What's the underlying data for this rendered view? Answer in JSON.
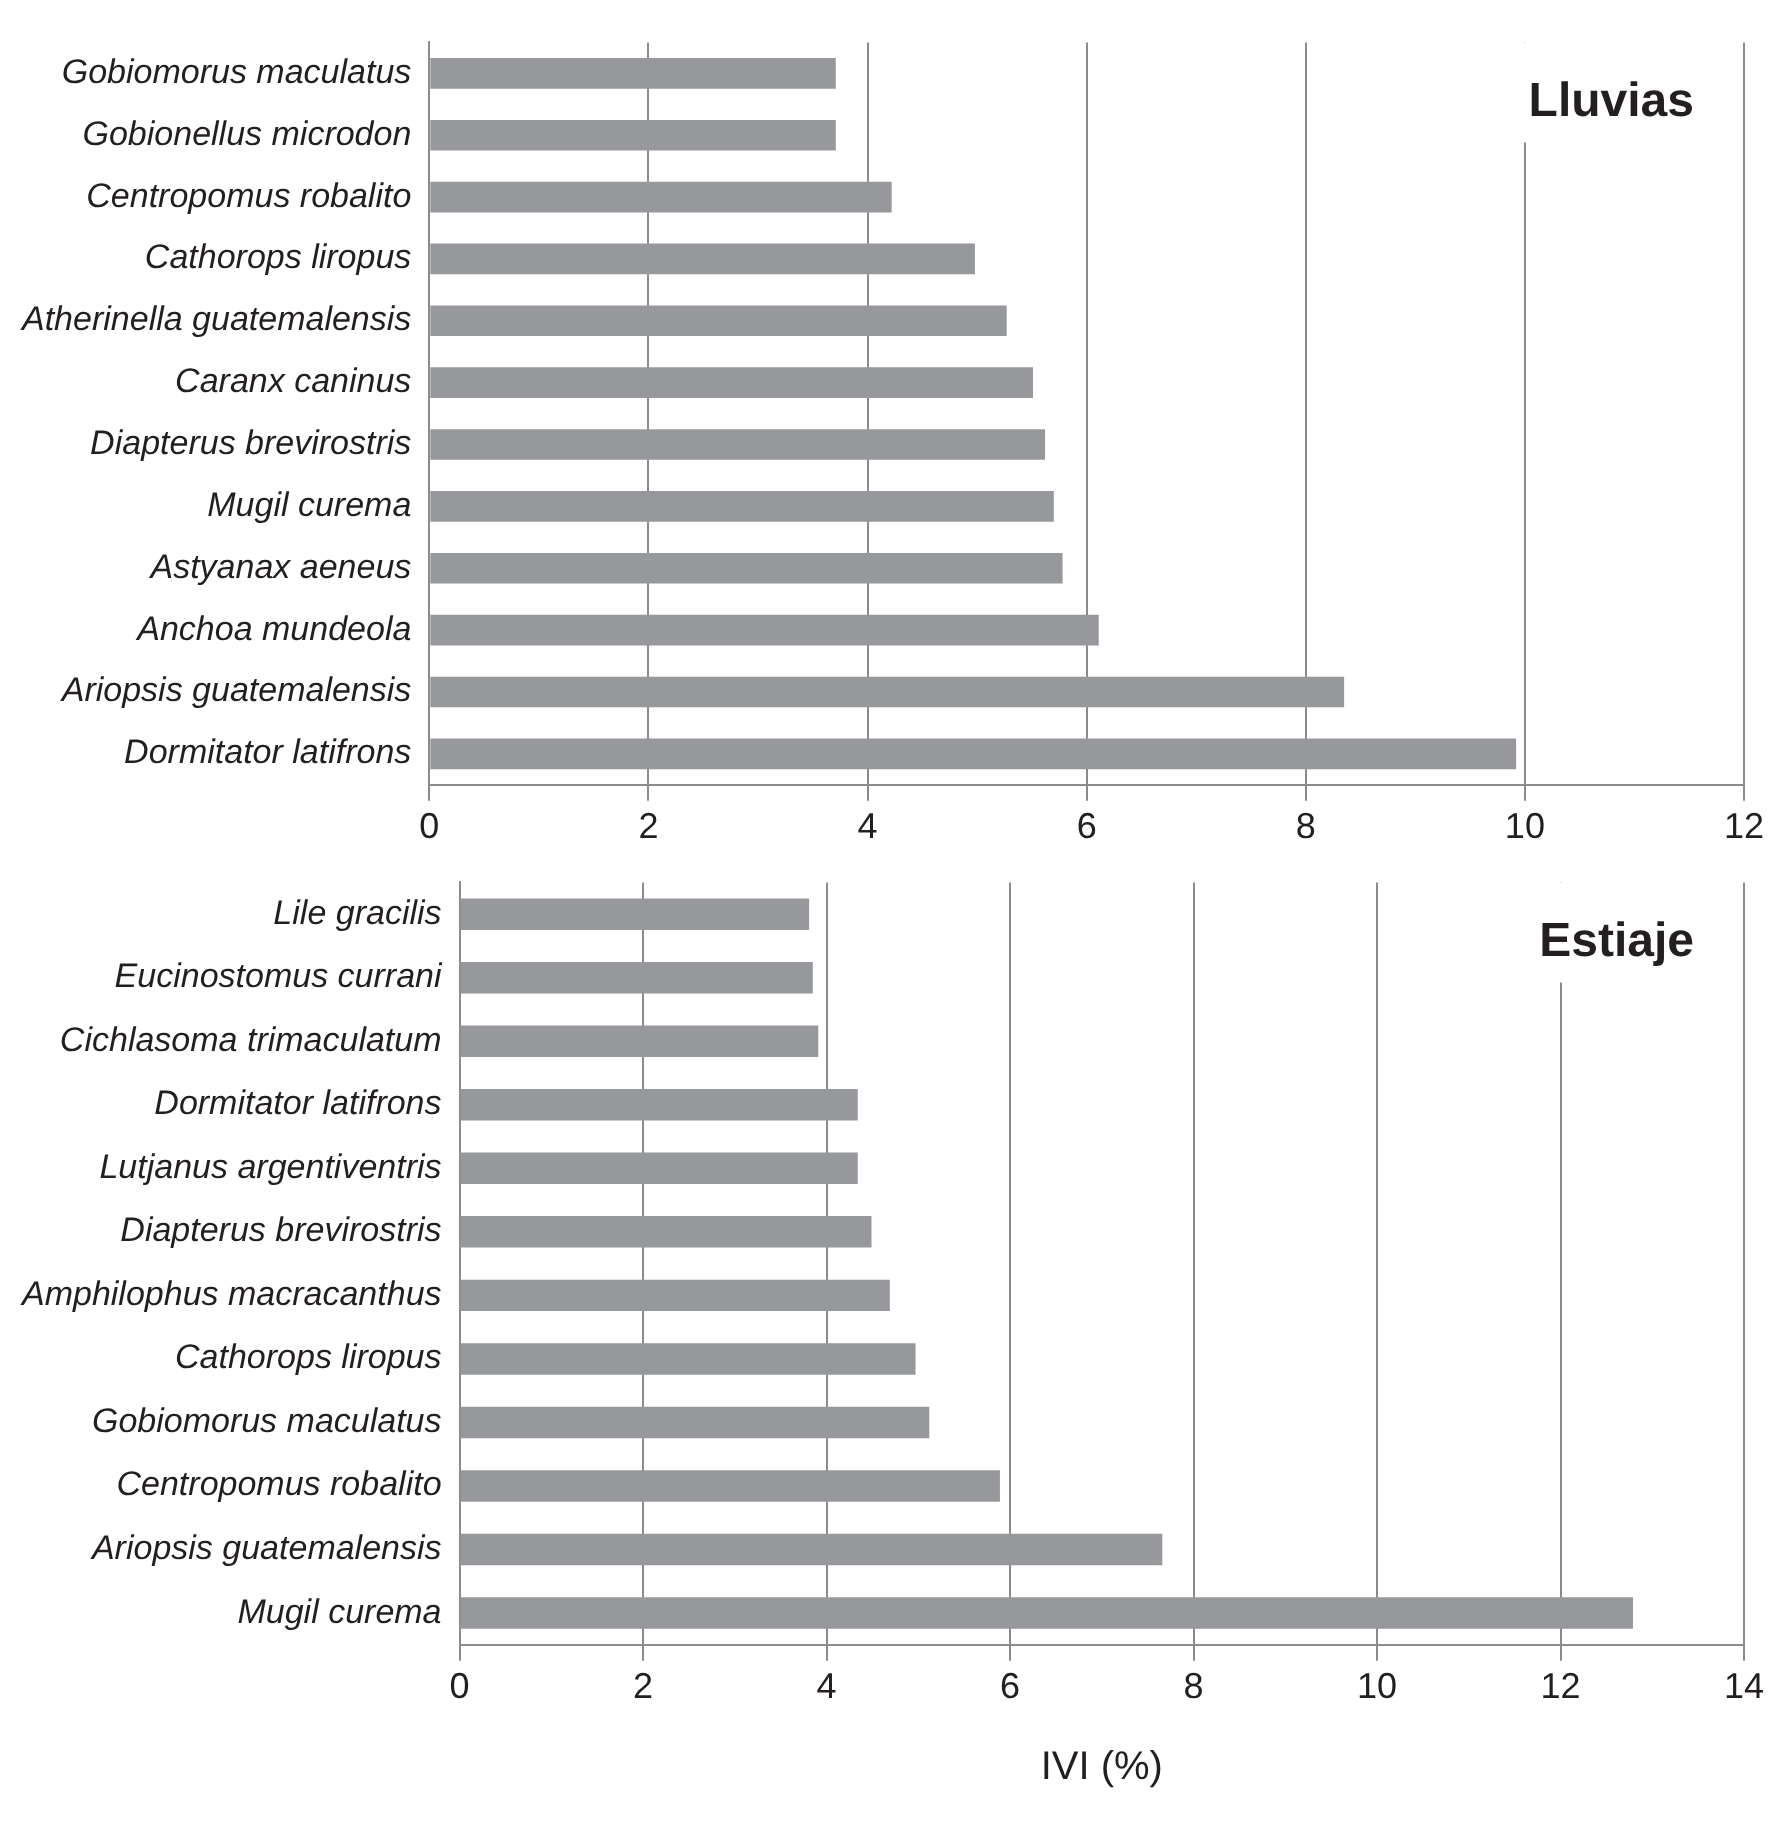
{
  "chart_data": [
    {
      "type": "bar",
      "orientation": "horizontal",
      "title": "Lluvias",
      "categories": [
        "Gobiomorus maculatus",
        "Gobionellus microdon",
        "Centropomus robalito",
        "Cathorops liropus",
        "Atherinella guatemalensis",
        "Caranx caninus",
        "Diapterus brevirostris",
        "Mugil curema",
        "Astyanax aeneus",
        "Anchoa mundeola",
        "Ariopsis guatemalensis",
        "Dormitator latifrons"
      ],
      "values": [
        3.71,
        3.71,
        4.22,
        4.98,
        5.27,
        5.51,
        5.62,
        5.7,
        5.78,
        6.11,
        8.35,
        9.92
      ],
      "color": "#97989c",
      "xlim": [
        0,
        12
      ],
      "xticks": [
        0,
        2,
        4,
        6,
        8,
        10,
        12
      ],
      "grid": "x",
      "legend": false
    },
    {
      "type": "bar",
      "orientation": "horizontal",
      "title": "Estiaje",
      "xlabel": "IVI (%)",
      "categories": [
        "Lile gracilis",
        "Eucinostomus currani",
        "Cichlasoma trimaculatum",
        "Dormitator latifrons",
        "Lutjanus argentiventris",
        "Diapterus brevirostris",
        "Amphilophus macracanthus",
        "Cathorops liropus",
        "Gobiomorus maculatus",
        "Centropomus robalito",
        "Ariopsis guatemalensis",
        "Mugil curema"
      ],
      "values": [
        3.81,
        3.85,
        3.91,
        4.34,
        4.34,
        4.49,
        4.69,
        4.97,
        5.12,
        5.89,
        7.66,
        12.79
      ],
      "color": "#97989c",
      "xlim": [
        0,
        14
      ],
      "xticks": [
        0,
        2,
        4,
        6,
        8,
        10,
        12,
        14
      ],
      "grid": "x",
      "legend": false
    }
  ]
}
